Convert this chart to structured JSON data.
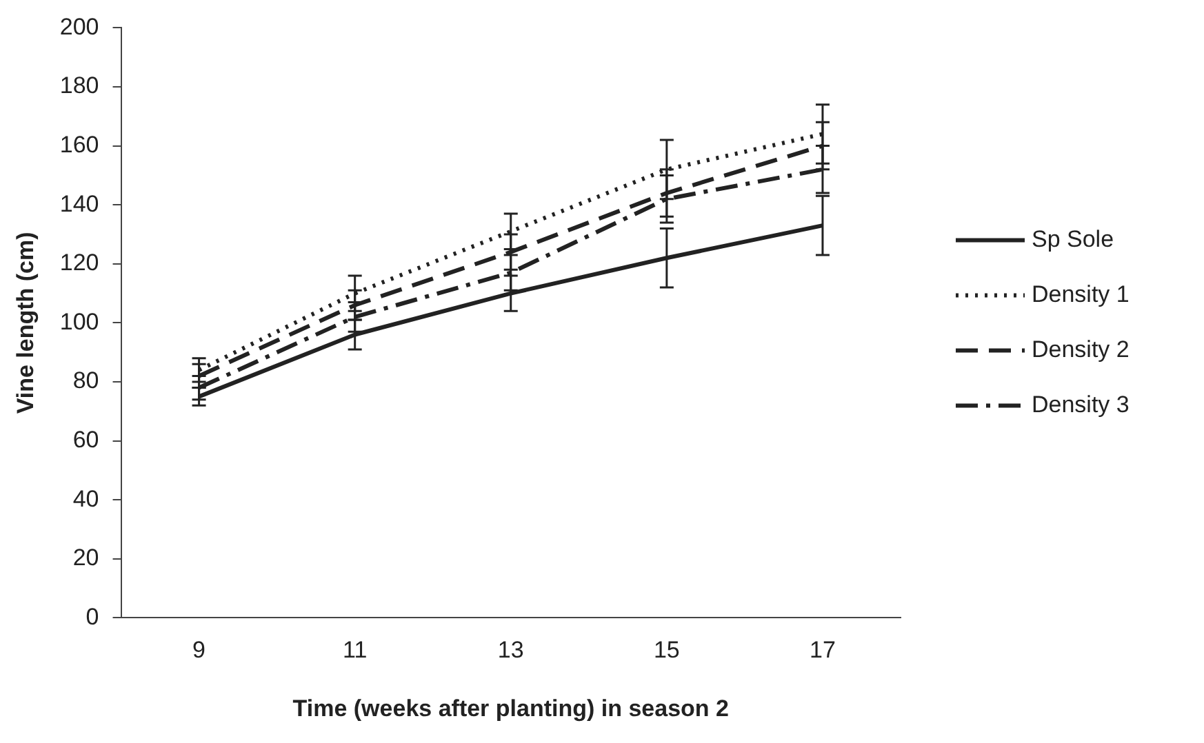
{
  "chart_data": {
    "type": "line",
    "xlabel": "Time (weeks after planting) in season 2",
    "ylabel": "Vine length (cm)",
    "categories": [
      "9",
      "11",
      "13",
      "15",
      "17"
    ],
    "ylim": [
      0,
      200
    ],
    "yticks": [
      0,
      20,
      40,
      60,
      80,
      100,
      120,
      140,
      160,
      180,
      200
    ],
    "grid": false,
    "legend": "right",
    "marker": "none",
    "series": [
      {
        "name": "Sp Sole",
        "color": "#222222",
        "line_style": "solid",
        "values": [
          75,
          96,
          110,
          122,
          133
        ],
        "errors": [
          3,
          5,
          6,
          10,
          10
        ]
      },
      {
        "name": "Density 1",
        "color": "#222222",
        "line_style": "dotted",
        "values": [
          84,
          110,
          131,
          152,
          164
        ],
        "errors": [
          4,
          6,
          6,
          10,
          10
        ]
      },
      {
        "name": "Density 2",
        "color": "#222222",
        "line_style": "dashed",
        "values": [
          82,
          106,
          124,
          144,
          160
        ],
        "errors": [
          4,
          5,
          6,
          8,
          8
        ]
      },
      {
        "name": "Density 3",
        "color": "#222222",
        "line_style": "dashdot",
        "values": [
          78,
          102,
          117,
          142,
          152
        ],
        "errors": [
          4,
          5,
          6,
          8,
          8
        ]
      }
    ]
  }
}
